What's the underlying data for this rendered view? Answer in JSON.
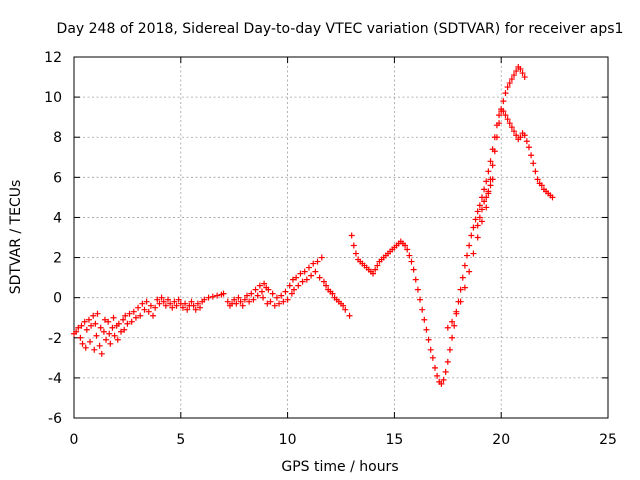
{
  "chart_data": {
    "type": "scatter",
    "title": "Day 248 of 2018, Sidereal Day-to-day VTEC variation (SDTVAR) for receiver aps1",
    "xlabel": "GPS time / hours",
    "ylabel": "SDTVAR / TECUs",
    "xlim": [
      0,
      25
    ],
    "ylim": [
      -6,
      12
    ],
    "xticks": [
      0,
      5,
      10,
      15,
      20,
      25
    ],
    "yticks": [
      -6,
      -4,
      -2,
      0,
      2,
      4,
      6,
      8,
      10,
      12
    ],
    "grid": true,
    "marker": "+",
    "color": "#ff0000",
    "series": [
      {
        "name": "SDTVAR",
        "points": [
          [
            0.0,
            -1.8
          ],
          [
            0.1,
            -1.7
          ],
          [
            0.2,
            -1.5
          ],
          [
            0.3,
            -2.0
          ],
          [
            0.35,
            -1.4
          ],
          [
            0.4,
            -2.3
          ],
          [
            0.5,
            -1.2
          ],
          [
            0.55,
            -2.5
          ],
          [
            0.6,
            -1.6
          ],
          [
            0.7,
            -1.1
          ],
          [
            0.75,
            -2.2
          ],
          [
            0.8,
            -1.4
          ],
          [
            0.9,
            -0.9
          ],
          [
            0.95,
            -2.6
          ],
          [
            1.0,
            -1.3
          ],
          [
            1.05,
            -1.9
          ],
          [
            1.1,
            -0.8
          ],
          [
            1.2,
            -2.4
          ],
          [
            1.25,
            -1.5
          ],
          [
            1.3,
            -2.8
          ],
          [
            1.4,
            -1.7
          ],
          [
            1.45,
            -1.1
          ],
          [
            1.5,
            -2.1
          ],
          [
            1.6,
            -1.2
          ],
          [
            1.65,
            -1.8
          ],
          [
            1.7,
            -2.3
          ],
          [
            1.8,
            -1.5
          ],
          [
            1.85,
            -1.0
          ],
          [
            1.9,
            -1.9
          ],
          [
            2.0,
            -1.4
          ],
          [
            2.05,
            -2.1
          ],
          [
            2.1,
            -1.3
          ],
          [
            2.2,
            -1.7
          ],
          [
            2.3,
            -1.1
          ],
          [
            2.35,
            -1.6
          ],
          [
            2.4,
            -0.9
          ],
          [
            2.5,
            -1.3
          ],
          [
            2.6,
            -0.8
          ],
          [
            2.7,
            -1.2
          ],
          [
            2.8,
            -0.7
          ],
          [
            2.9,
            -1.0
          ],
          [
            3.0,
            -0.5
          ],
          [
            3.1,
            -0.9
          ],
          [
            3.2,
            -0.3
          ],
          [
            3.3,
            -0.6
          ],
          [
            3.4,
            -0.2
          ],
          [
            3.5,
            -0.7
          ],
          [
            3.6,
            -0.4
          ],
          [
            3.7,
            -0.9
          ],
          [
            3.8,
            -0.5
          ],
          [
            3.9,
            -0.1
          ],
          [
            4.0,
            -0.3
          ],
          [
            4.1,
            0.0
          ],
          [
            4.2,
            -0.2
          ],
          [
            4.3,
            -0.4
          ],
          [
            4.4,
            -0.1
          ],
          [
            4.5,
            -0.3
          ],
          [
            4.6,
            -0.5
          ],
          [
            4.7,
            -0.2
          ],
          [
            4.8,
            -0.4
          ],
          [
            4.9,
            -0.1
          ],
          [
            5.0,
            -0.3
          ],
          [
            5.1,
            -0.5
          ],
          [
            5.2,
            -0.3
          ],
          [
            5.3,
            -0.6
          ],
          [
            5.4,
            -0.4
          ],
          [
            5.5,
            -0.2
          ],
          [
            5.6,
            -0.4
          ],
          [
            5.7,
            -0.6
          ],
          [
            5.8,
            -0.3
          ],
          [
            5.9,
            -0.5
          ],
          [
            6.0,
            -0.2
          ],
          [
            6.1,
            -0.1
          ],
          [
            6.3,
            0.0
          ],
          [
            6.5,
            0.05
          ],
          [
            6.7,
            0.1
          ],
          [
            6.9,
            0.15
          ],
          [
            7.0,
            0.2
          ],
          [
            7.2,
            -0.2
          ],
          [
            7.3,
            -0.4
          ],
          [
            7.4,
            -0.3
          ],
          [
            7.5,
            -0.1
          ],
          [
            7.6,
            -0.3
          ],
          [
            7.7,
            0.0
          ],
          [
            7.8,
            -0.2
          ],
          [
            7.9,
            -0.4
          ],
          [
            8.0,
            -0.1
          ],
          [
            8.1,
            0.1
          ],
          [
            8.2,
            -0.2
          ],
          [
            8.3,
            0.2
          ],
          [
            8.4,
            -0.1
          ],
          [
            8.5,
            0.4
          ],
          [
            8.6,
            0.1
          ],
          [
            8.7,
            0.6
          ],
          [
            8.8,
            0.3
          ],
          [
            8.85,
            0.0
          ],
          [
            8.9,
            0.7
          ],
          [
            9.0,
            0.5
          ],
          [
            9.05,
            -0.3
          ],
          [
            9.1,
            0.4
          ],
          [
            9.2,
            -0.2
          ],
          [
            9.3,
            0.2
          ],
          [
            9.4,
            -0.4
          ],
          [
            9.5,
            0.0
          ],
          [
            9.6,
            -0.3
          ],
          [
            9.7,
            0.1
          ],
          [
            9.8,
            -0.2
          ],
          [
            9.9,
            0.3
          ],
          [
            10.0,
            -0.1
          ],
          [
            10.1,
            0.6
          ],
          [
            10.2,
            0.2
          ],
          [
            10.25,
            0.9
          ],
          [
            10.3,
            0.4
          ],
          [
            10.4,
            1.0
          ],
          [
            10.5,
            0.6
          ],
          [
            10.6,
            1.2
          ],
          [
            10.7,
            0.8
          ],
          [
            10.8,
            1.3
          ],
          [
            10.9,
            0.9
          ],
          [
            11.0,
            1.5
          ],
          [
            11.1,
            1.1
          ],
          [
            11.2,
            1.7
          ],
          [
            11.3,
            1.3
          ],
          [
            11.4,
            1.8
          ],
          [
            11.5,
            1.0
          ],
          [
            11.6,
            2.0
          ],
          [
            11.7,
            0.8
          ],
          [
            11.8,
            0.6
          ],
          [
            11.9,
            0.4
          ],
          [
            12.0,
            0.3
          ],
          [
            12.1,
            0.2
          ],
          [
            12.2,
            0.0
          ],
          [
            12.3,
            -0.1
          ],
          [
            12.4,
            -0.2
          ],
          [
            12.5,
            -0.3
          ],
          [
            12.6,
            -0.4
          ],
          [
            12.7,
            -0.6
          ],
          [
            12.9,
            -0.9
          ],
          [
            13.0,
            3.1
          ],
          [
            13.1,
            2.6
          ],
          [
            13.2,
            2.2
          ],
          [
            13.3,
            1.9
          ],
          [
            13.4,
            1.8
          ],
          [
            13.5,
            1.7
          ],
          [
            13.6,
            1.6
          ],
          [
            13.7,
            1.5
          ],
          [
            13.8,
            1.4
          ],
          [
            13.9,
            1.3
          ],
          [
            14.0,
            1.2
          ],
          [
            14.1,
            1.4
          ],
          [
            14.2,
            1.6
          ],
          [
            14.3,
            1.8
          ],
          [
            14.4,
            1.9
          ],
          [
            14.5,
            2.0
          ],
          [
            14.6,
            2.1
          ],
          [
            14.7,
            2.2
          ],
          [
            14.8,
            2.3
          ],
          [
            14.9,
            2.4
          ],
          [
            15.0,
            2.5
          ],
          [
            15.1,
            2.6
          ],
          [
            15.2,
            2.7
          ],
          [
            15.3,
            2.8
          ],
          [
            15.4,
            2.7
          ],
          [
            15.5,
            2.6
          ],
          [
            15.6,
            2.4
          ],
          [
            15.7,
            2.1
          ],
          [
            15.8,
            1.8
          ],
          [
            15.9,
            1.4
          ],
          [
            16.0,
            0.9
          ],
          [
            16.1,
            0.4
          ],
          [
            16.2,
            -0.1
          ],
          [
            16.3,
            -0.6
          ],
          [
            16.4,
            -1.1
          ],
          [
            16.5,
            -1.6
          ],
          [
            16.6,
            -2.1
          ],
          [
            16.7,
            -2.6
          ],
          [
            16.8,
            -3.0
          ],
          [
            16.9,
            -3.5
          ],
          [
            17.0,
            -3.9
          ],
          [
            17.1,
            -4.2
          ],
          [
            17.2,
            -4.3
          ],
          [
            17.3,
            -4.1
          ],
          [
            17.4,
            -3.7
          ],
          [
            17.5,
            -3.2
          ],
          [
            17.6,
            -2.6
          ],
          [
            17.7,
            -2.0
          ],
          [
            17.8,
            -1.4
          ],
          [
            17.9,
            -0.8
          ],
          [
            18.0,
            -0.2
          ],
          [
            18.1,
            0.4
          ],
          [
            18.2,
            1.0
          ],
          [
            18.3,
            1.6
          ],
          [
            18.4,
            2.1
          ],
          [
            18.5,
            2.6
          ],
          [
            18.6,
            3.1
          ],
          [
            18.7,
            3.5
          ],
          [
            18.8,
            3.9
          ],
          [
            18.9,
            4.3
          ],
          [
            19.0,
            4.6
          ],
          [
            19.1,
            5.0
          ],
          [
            19.2,
            5.4
          ],
          [
            19.3,
            5.8
          ],
          [
            19.4,
            6.3
          ],
          [
            19.5,
            6.8
          ],
          [
            19.6,
            7.4
          ],
          [
            19.7,
            8.0
          ],
          [
            19.8,
            8.6
          ],
          [
            19.9,
            9.1
          ],
          [
            20.0,
            9.4
          ],
          [
            20.1,
            9.3
          ],
          [
            20.2,
            9.1
          ],
          [
            20.3,
            8.9
          ],
          [
            20.4,
            8.7
          ],
          [
            20.5,
            8.5
          ],
          [
            20.6,
            8.3
          ],
          [
            20.7,
            8.1
          ],
          [
            20.8,
            7.9
          ],
          [
            20.9,
            8.0
          ],
          [
            21.0,
            8.2
          ],
          [
            21.1,
            8.1
          ],
          [
            21.2,
            7.8
          ],
          [
            21.3,
            7.5
          ],
          [
            21.4,
            7.1
          ],
          [
            21.5,
            6.7
          ],
          [
            21.6,
            6.3
          ],
          [
            21.7,
            5.9
          ],
          [
            21.8,
            5.7
          ],
          [
            21.9,
            5.6
          ],
          [
            22.0,
            5.4
          ],
          [
            22.1,
            5.3
          ],
          [
            22.2,
            5.2
          ],
          [
            22.3,
            5.1
          ],
          [
            22.4,
            5.0
          ],
          [
            17.5,
            -1.5
          ],
          [
            17.7,
            -1.2
          ],
          [
            17.9,
            -0.7
          ],
          [
            18.1,
            -0.2
          ],
          [
            18.3,
            0.5
          ],
          [
            18.5,
            1.3
          ],
          [
            18.7,
            2.2
          ],
          [
            18.9,
            3.0
          ],
          [
            19.1,
            3.8
          ],
          [
            19.3,
            4.5
          ],
          [
            19.4,
            5.2
          ],
          [
            19.5,
            5.9
          ],
          [
            19.6,
            6.6
          ],
          [
            19.7,
            7.3
          ],
          [
            19.8,
            8.0
          ],
          [
            19.9,
            8.7
          ],
          [
            20.0,
            9.3
          ],
          [
            20.1,
            9.8
          ],
          [
            20.2,
            10.2
          ],
          [
            20.3,
            10.5
          ],
          [
            20.4,
            10.7
          ],
          [
            20.5,
            10.9
          ],
          [
            20.6,
            11.1
          ],
          [
            20.7,
            11.3
          ],
          [
            20.8,
            11.5
          ],
          [
            20.9,
            11.4
          ],
          [
            21.0,
            11.2
          ],
          [
            21.1,
            11.0
          ],
          [
            18.9,
            3.6
          ],
          [
            19.0,
            4.0
          ],
          [
            19.1,
            4.4
          ],
          [
            19.2,
            4.8
          ],
          [
            19.3,
            5.0
          ],
          [
            19.4,
            5.3
          ],
          [
            19.5,
            5.6
          ],
          [
            19.6,
            5.9
          ]
        ]
      }
    ]
  }
}
